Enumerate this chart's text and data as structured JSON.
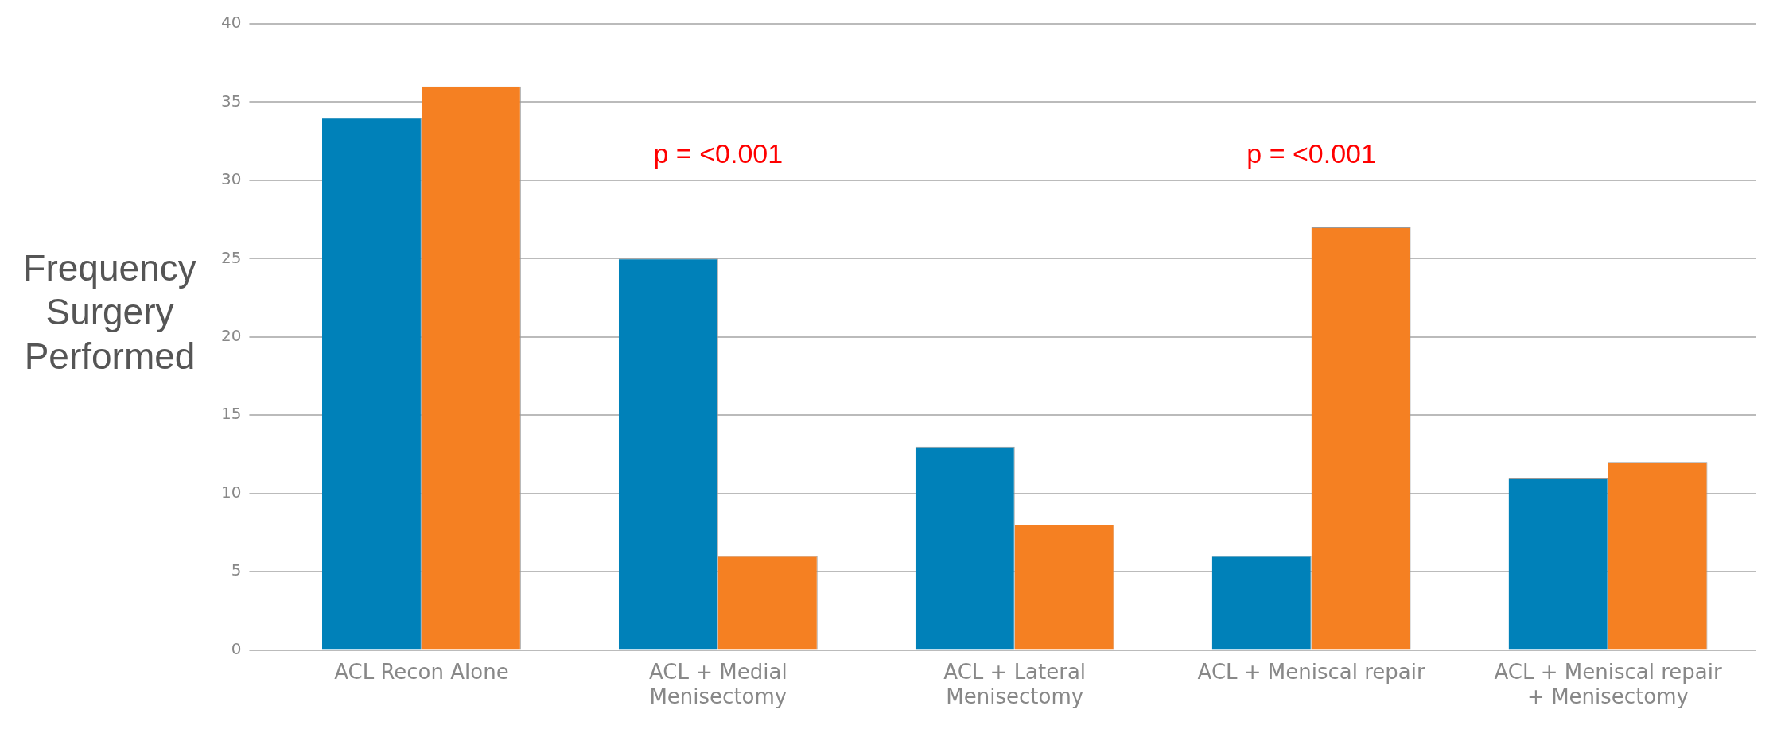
{
  "chart_data": {
    "type": "bar",
    "ylabel": "Frequency Surgery Performed",
    "categories": [
      "ACL Recon Alone",
      "ACL + Medial Menisectomy",
      "ACL + Lateral Menisectomy",
      "ACL + Meniscal repair",
      "ACL + Meniscal repair + Menisectomy"
    ],
    "series": [
      {
        "color": "#0081b9",
        "values": [
          34,
          25,
          13,
          6,
          11
        ]
      },
      {
        "color": "#f58022",
        "values": [
          36,
          6,
          8,
          27,
          12
        ]
      }
    ],
    "ylim": [
      0,
      40
    ],
    "yticks": [
      0,
      5,
      10,
      15,
      20,
      25,
      30,
      35,
      40
    ],
    "grid": "y",
    "legend": false,
    "annotations": [
      "p = <0.001",
      "p = <0.001"
    ]
  }
}
